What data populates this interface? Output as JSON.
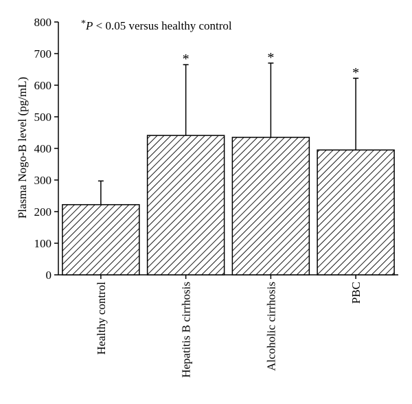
{
  "chart_data": {
    "type": "bar",
    "title": "",
    "xlabel": "",
    "ylabel": "Plasma Nogo-B level (pg/mL)",
    "ylim": [
      0,
      800
    ],
    "yticks": [
      0,
      100,
      200,
      300,
      400,
      500,
      600,
      700,
      800
    ],
    "categories": [
      "Healthy control",
      "Hepatitis B cirrhosis",
      "Alcoholic cirrhosis",
      "PBC"
    ],
    "values": [
      222,
      441,
      435,
      395
    ],
    "error_upper": [
      297,
      665,
      670,
      622
    ],
    "significant": [
      false,
      true,
      true,
      true
    ],
    "significance_marker": "*",
    "annotation": {
      "marker": "*",
      "symbol": "P",
      "text": " < 0.05 versus healthy control"
    },
    "bar_fill": "diagonal-hatch",
    "colors": {
      "bar_stroke": "#000000",
      "hatch": "#000000",
      "background": "#ffffff"
    },
    "grid": false,
    "legend": "none"
  }
}
